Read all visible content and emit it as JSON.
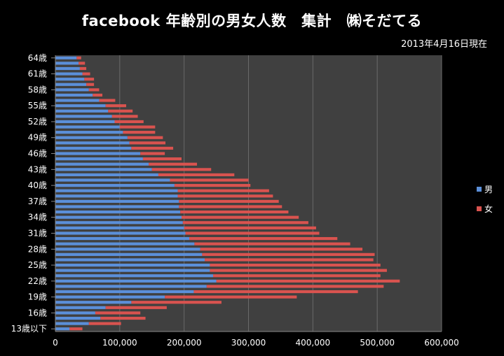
{
  "chart_data": {
    "type": "bar",
    "orientation": "horizontal",
    "stacked": true,
    "title": "facebook 年齢別の男女人数　集計　㈱そだてる",
    "subtitle": "2013年4月16日現在",
    "xlim": [
      0,
      600000
    ],
    "x_ticks": [
      "0",
      "100,000",
      "200,000",
      "300,000",
      "400,000",
      "500,000",
      "600,000"
    ],
    "grid": true,
    "legend_position": "right",
    "categories": [
      "13歳以下",
      "14歳",
      "15歳",
      "16歳",
      "17歳",
      "18歳",
      "19歳",
      "20歳",
      "21歳",
      "22歳",
      "23歳",
      "24歳",
      "25歳",
      "26歳",
      "27歳",
      "28歳",
      "29歳",
      "30歳",
      "31歳",
      "32歳",
      "33歳",
      "34歳",
      "35歳",
      "36歳",
      "37歳",
      "38歳",
      "39歳",
      "40歳",
      "41歳",
      "42歳",
      "43歳",
      "44歳",
      "45歳",
      "46歳",
      "47歳",
      "48歳",
      "49歳",
      "50歳",
      "51歳",
      "52歳",
      "53歳",
      "54歳",
      "55歳",
      "56歳",
      "57歳",
      "58歳",
      "59歳",
      "60歳",
      "61歳",
      "62歳",
      "63歳",
      "64歳"
    ],
    "category_labels_shown": [
      "13歳以下",
      "16歳",
      "19歳",
      "22歳",
      "25歳",
      "28歳",
      "31歳",
      "34歳",
      "37歳",
      "40歳",
      "43歳",
      "46歳",
      "49歳",
      "52歳",
      "55歳",
      "58歳",
      "61歳",
      "64歳"
    ],
    "series": [
      {
        "name": "男",
        "color": "#5b8fd9",
        "values": [
          22000,
          52000,
          70000,
          62000,
          78000,
          118000,
          170000,
          215000,
          235000,
          250000,
          245000,
          240000,
          240000,
          232000,
          228000,
          225000,
          216000,
          208000,
          202000,
          200000,
          198000,
          196000,
          194000,
          192000,
          192000,
          190000,
          190000,
          185000,
          178000,
          160000,
          150000,
          145000,
          136000,
          132000,
          118000,
          115000,
          112000,
          105000,
          100000,
          92000,
          88000,
          82000,
          78000,
          68000,
          58000,
          52000,
          48000,
          45000,
          42000,
          38000,
          36000,
          33000
        ]
      },
      {
        "name": "女",
        "color": "#d9534f",
        "values": [
          20000,
          50000,
          70000,
          70000,
          95000,
          140000,
          205000,
          255000,
          275000,
          285000,
          260000,
          275000,
          265000,
          262000,
          268000,
          252000,
          242000,
          230000,
          208000,
          205000,
          195000,
          182000,
          168000,
          160000,
          155000,
          148000,
          142000,
          118000,
          122000,
          118000,
          92000,
          75000,
          60000,
          38000,
          65000,
          56000,
          55000,
          50000,
          55000,
          45000,
          40000,
          38000,
          32000,
          25000,
          15000,
          16000,
          12000,
          15000,
          12000,
          10000,
          10000,
          7000
        ]
      }
    ]
  }
}
